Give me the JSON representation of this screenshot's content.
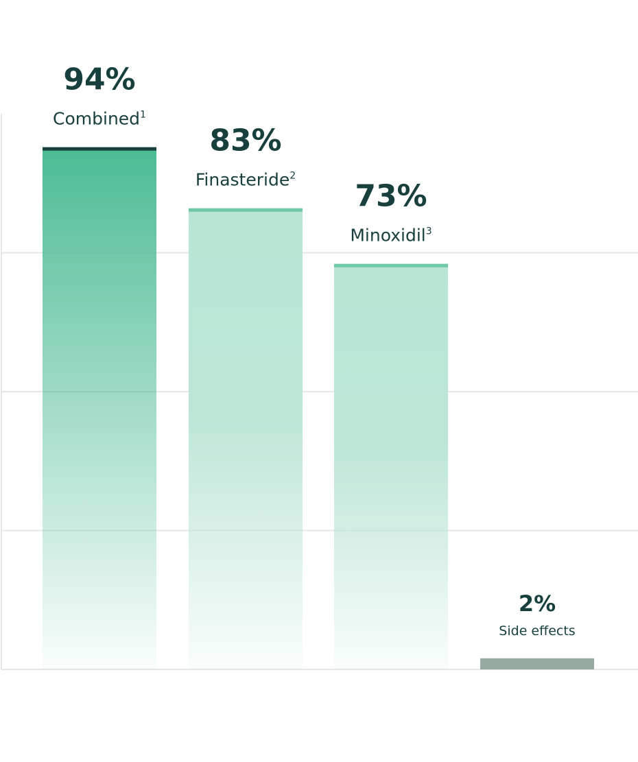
{
  "chart_data": {
    "type": "bar",
    "categories": [
      "Combined",
      "Finasteride",
      "Minoxidil",
      "Side effects"
    ],
    "footnotes": [
      "1",
      "2",
      "3",
      ""
    ],
    "values": [
      94,
      83,
      73,
      2
    ],
    "value_labels": [
      "94%",
      "83%",
      "73%",
      "2%"
    ],
    "ylim": [
      0,
      100
    ],
    "grid": true,
    "colors": {
      "primary_top": "#4cbb94",
      "primary_cap": "#173f3d",
      "secondary_fill": "#b9e4d4",
      "secondary_cap": "#6cc9a6",
      "side_effects": "#97aaa1",
      "text": "#173f3d",
      "grid": "#e6e6e6"
    }
  }
}
